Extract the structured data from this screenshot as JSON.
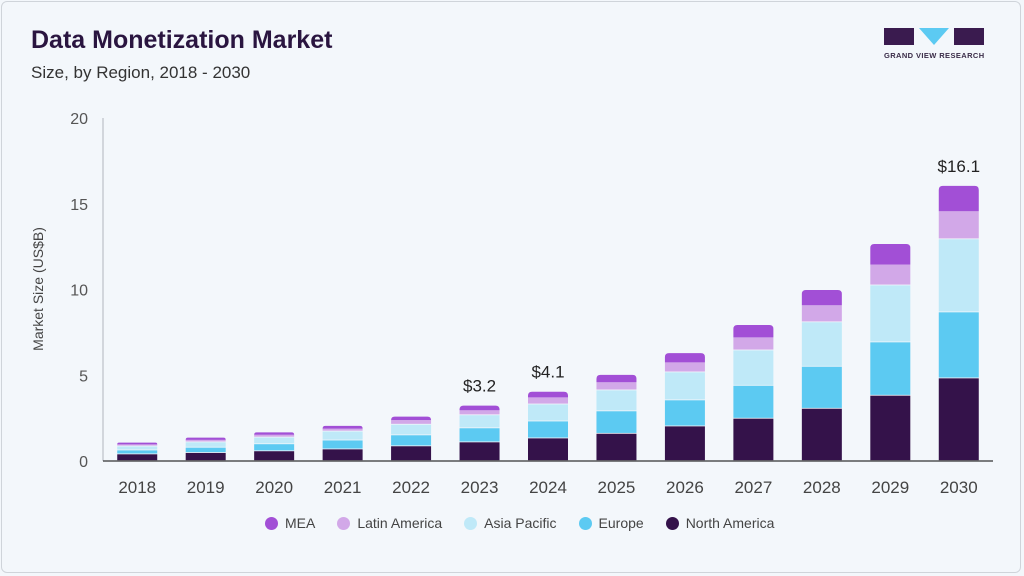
{
  "header": {
    "title": "Data Monetization Market",
    "subtitle": "Size, by Region, 2018 - 2030",
    "logo_text": "GRAND VIEW RESEARCH"
  },
  "chart_data": {
    "type": "bar",
    "stacked": true,
    "title": "Data Monetization Market",
    "subtitle": "Size, by Region, 2018 - 2030",
    "xlabel": "",
    "ylabel": "Market Size (US$B)",
    "ylim": [
      0,
      20
    ],
    "yticks": [
      "0",
      "5",
      "10",
      "15",
      "20"
    ],
    "grid": false,
    "legend_position": "bottom",
    "categories": [
      "2018",
      "2019",
      "2020",
      "2021",
      "2022",
      "2023",
      "2024",
      "2025",
      "2026",
      "2027",
      "2028",
      "2029",
      "2030"
    ],
    "series": [
      {
        "name": "North America",
        "color": "#34124a",
        "values": [
          0.39,
          0.47,
          0.57,
          0.68,
          0.86,
          1.09,
          1.32,
          1.59,
          2.02,
          2.47,
          3.05,
          3.81,
          4.82
        ]
      },
      {
        "name": "Europe",
        "color": "#5ccaf2",
        "values": [
          0.23,
          0.31,
          0.41,
          0.52,
          0.64,
          0.82,
          0.99,
          1.31,
          1.52,
          1.92,
          2.45,
          3.11,
          3.85
        ]
      },
      {
        "name": "Asia Pacific",
        "color": "#bfe9f8",
        "values": [
          0.23,
          0.31,
          0.39,
          0.52,
          0.62,
          0.76,
          0.99,
          1.22,
          1.63,
          2.06,
          2.59,
          3.32,
          4.26
        ]
      },
      {
        "name": "Latin America",
        "color": "#d2a8e8",
        "values": [
          0.12,
          0.14,
          0.16,
          0.17,
          0.26,
          0.29,
          0.41,
          0.47,
          0.58,
          0.76,
          0.99,
          1.22,
          1.63
        ]
      },
      {
        "name": "MEA",
        "color": "#a24fd6",
        "values": [
          0.1,
          0.13,
          0.14,
          0.16,
          0.21,
          0.27,
          0.33,
          0.43,
          0.54,
          0.72,
          0.89,
          1.19,
          1.48
        ]
      }
    ],
    "legend_order": [
      "MEA",
      "Latin America",
      "Asia Pacific",
      "Europe",
      "North America"
    ],
    "annotations": [
      {
        "category": "2023",
        "text": "$3.2"
      },
      {
        "category": "2024",
        "text": "$4.1"
      },
      {
        "category": "2030",
        "text": "$16.1"
      }
    ]
  }
}
